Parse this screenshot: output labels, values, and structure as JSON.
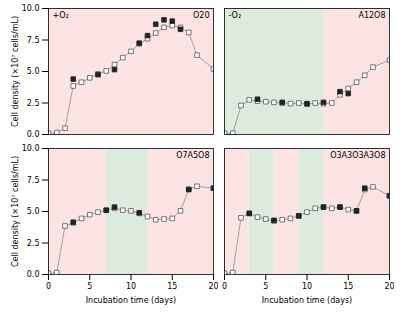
{
  "chart_data": [
    {
      "type": "line",
      "title": "O20",
      "annotation": "+O₂",
      "ylabel": "Cell density (×10⁷ cells/mL)",
      "xlim": [
        0,
        20
      ],
      "ylim": [
        0,
        10
      ],
      "xticks": [
        0,
        5,
        10,
        15,
        20
      ],
      "yticks": [
        {
          "value": 0.0,
          "label": "0.0"
        },
        2.5,
        {
          "value": 5.0,
          "label": "5.0"
        },
        7.5,
        {
          "value": 10.0,
          "label": "10.0"
        }
      ],
      "grid": false,
      "tick_labels": "y",
      "bands": [
        {
          "start": 0,
          "end": 20,
          "color": "#fce4e4"
        }
      ],
      "series": [
        {
          "color": "#555555",
          "marker": "open_square",
          "line_style": "solid",
          "x": [
            0,
            1,
            2,
            3,
            4,
            5,
            6,
            7,
            8,
            9,
            10,
            11,
            12,
            13,
            14,
            15,
            16,
            17,
            18,
            20
          ],
          "values": [
            0.1,
            0.15,
            0.5,
            3.85,
            4.15,
            4.5,
            4.8,
            5.05,
            5.55,
            6.1,
            6.6,
            7.2,
            7.6,
            8.05,
            8.5,
            8.65,
            8.5,
            8.1,
            6.3,
            5.2
          ]
        },
        {
          "color": "#222222",
          "marker": "filled_square",
          "line_style": "none",
          "x": [
            3,
            6,
            8,
            11,
            12,
            13,
            14,
            15,
            16
          ],
          "values": [
            4.4,
            4.75,
            5.15,
            7.25,
            7.85,
            8.75,
            9.1,
            9.0,
            8.35
          ]
        }
      ]
    },
    {
      "type": "line",
      "title": "A12O8",
      "annotation": "-O₂",
      "xlim": [
        0,
        20
      ],
      "ylim": [
        0,
        10
      ],
      "xticks": [
        0,
        5,
        10,
        15,
        20
      ],
      "yticks": [
        {
          "value": 0.0,
          "label": "0.0"
        },
        2.5,
        {
          "value": 5.0,
          "label": "5.0"
        },
        7.5,
        {
          "value": 10.0,
          "label": "10.0"
        }
      ],
      "grid": false,
      "tick_labels": false,
      "bands": [
        {
          "start": 0,
          "end": 12,
          "color": "#ddeade"
        },
        {
          "start": 12,
          "end": 20,
          "color": "#fce4e4"
        }
      ],
      "series": [
        {
          "color": "#555555",
          "marker": "open_square",
          "line_style": "solid",
          "x": [
            0,
            1,
            2,
            3,
            4,
            5,
            6,
            7,
            8,
            9,
            10,
            11,
            12,
            13,
            14,
            15,
            16,
            17,
            18,
            20
          ],
          "values": [
            0.1,
            0.1,
            2.3,
            2.75,
            2.65,
            2.6,
            2.55,
            2.5,
            2.45,
            2.5,
            2.4,
            2.5,
            2.45,
            2.5,
            3.15,
            3.65,
            4.15,
            4.7,
            5.35,
            5.9
          ]
        },
        {
          "color": "#222222",
          "marker": "filled_square",
          "line_style": "none",
          "x": [
            4,
            7,
            10,
            12,
            14,
            15
          ],
          "values": [
            2.8,
            2.55,
            2.45,
            2.55,
            3.4,
            3.25
          ]
        }
      ]
    },
    {
      "type": "line",
      "title": "O7A5O8",
      "ylabel": "Cell density (×10⁷ cells/mL)",
      "xlabel": "Incubation time (days)",
      "xlim": [
        0,
        20
      ],
      "ylim": [
        0,
        10
      ],
      "xticks": [
        0,
        5,
        10,
        15,
        20
      ],
      "yticks": [
        {
          "value": 0.0,
          "label": "0.0"
        },
        2.5,
        {
          "value": 5.0,
          "label": "5.0"
        },
        7.5,
        {
          "value": 10.0,
          "label": "10.0"
        }
      ],
      "grid": false,
      "bands": [
        {
          "start": 0,
          "end": 7,
          "color": "#fce4e4"
        },
        {
          "start": 7,
          "end": 12,
          "color": "#ddeade"
        },
        {
          "start": 12,
          "end": 20,
          "color": "#fce4e4"
        }
      ],
      "series": [
        {
          "color": "#555555",
          "marker": "open_square",
          "line_style": "solid",
          "x": [
            0,
            1,
            2,
            3,
            4,
            5,
            6,
            7,
            8,
            9,
            10,
            11,
            12,
            13,
            14,
            15,
            16,
            17,
            18,
            20
          ],
          "values": [
            0.1,
            0.15,
            3.85,
            4.1,
            4.45,
            4.75,
            4.95,
            5.1,
            5.25,
            5.1,
            5.05,
            4.85,
            4.6,
            4.35,
            4.4,
            4.45,
            5.05,
            6.75,
            7.0,
            6.85
          ]
        },
        {
          "color": "#222222",
          "marker": "filled_square",
          "line_style": "none",
          "x": [
            3,
            7,
            8,
            11,
            17,
            20
          ],
          "values": [
            4.15,
            5.1,
            5.35,
            4.9,
            6.75,
            6.85
          ]
        }
      ]
    },
    {
      "type": "line",
      "title": "O3A3O3A3O8",
      "xlabel": "Incubation time (days)",
      "xlim": [
        0,
        20
      ],
      "ylim": [
        0,
        10
      ],
      "xticks": [
        0,
        5,
        10,
        15,
        20
      ],
      "yticks": [
        {
          "value": 0.0,
          "label": "0.0"
        },
        2.5,
        {
          "value": 5.0,
          "label": "5.0"
        },
        7.5,
        {
          "value": 10.0,
          "label": "10.0"
        }
      ],
      "grid": false,
      "tick_labels": "x",
      "bands": [
        {
          "start": 0,
          "end": 3,
          "color": "#fce4e4"
        },
        {
          "start": 3,
          "end": 6,
          "color": "#ddeade"
        },
        {
          "start": 6,
          "end": 9,
          "color": "#fce4e4"
        },
        {
          "start": 9,
          "end": 12,
          "color": "#ddeade"
        },
        {
          "start": 12,
          "end": 20,
          "color": "#fce4e4"
        }
      ],
      "series": [
        {
          "color": "#555555",
          "marker": "open_square",
          "line_style": "solid",
          "x": [
            0,
            1,
            2,
            3,
            4,
            5,
            6,
            7,
            8,
            9,
            10,
            11,
            12,
            13,
            14,
            15,
            16,
            17,
            18,
            20
          ],
          "values": [
            0.1,
            0.15,
            4.5,
            4.85,
            4.55,
            4.4,
            4.25,
            4.35,
            4.45,
            4.65,
            4.95,
            5.25,
            5.35,
            5.25,
            5.35,
            5.15,
            5.05,
            6.75,
            6.95,
            6.25
          ]
        },
        {
          "color": "#222222",
          "marker": "filled_square",
          "line_style": "none",
          "x": [
            3,
            6,
            9,
            12,
            14,
            16,
            17,
            20
          ],
          "values": [
            4.85,
            4.3,
            4.65,
            5.35,
            5.35,
            5.05,
            6.85,
            6.25
          ]
        }
      ]
    }
  ]
}
